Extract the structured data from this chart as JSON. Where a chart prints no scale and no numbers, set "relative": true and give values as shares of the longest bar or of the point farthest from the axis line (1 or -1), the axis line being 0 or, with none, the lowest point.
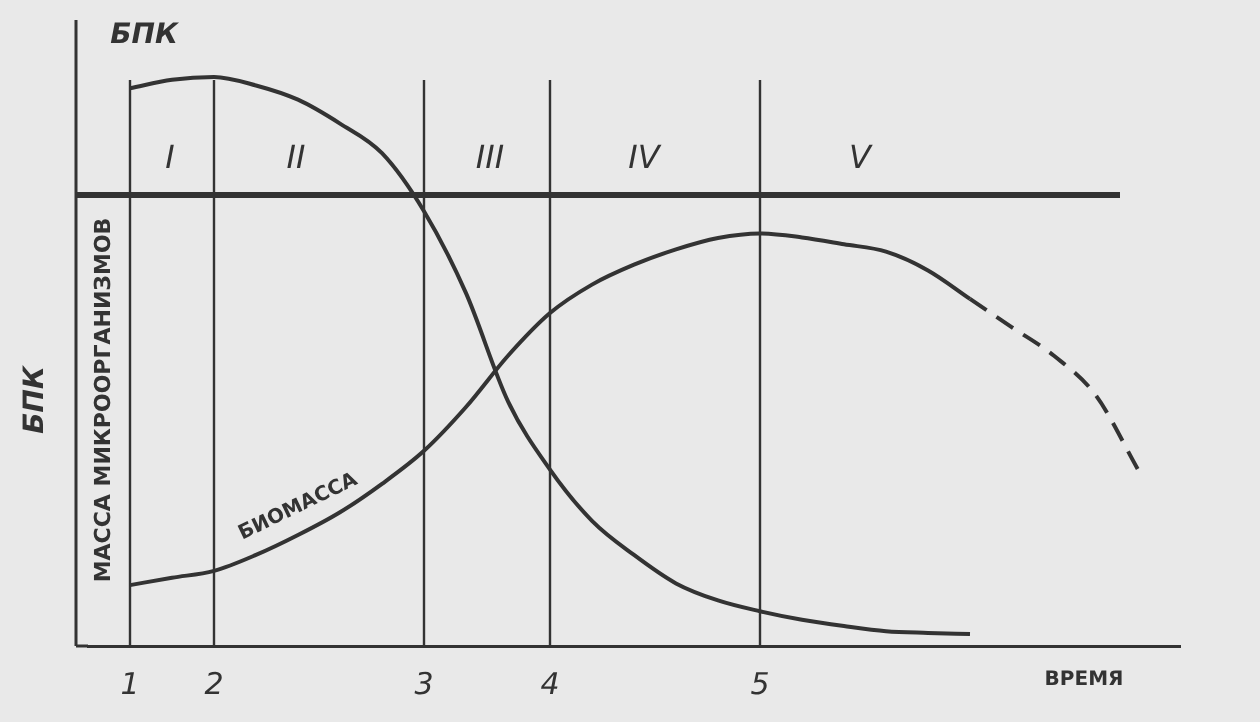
{
  "chart_data": {
    "type": "line",
    "relative": true,
    "ylabel": "БПК",
    "xlabel": "ВРЕМЯ",
    "annotations": [
      "БПК",
      "МАССА МИКРООРГАНИЗМОВ",
      "I",
      "II",
      "III",
      "IV",
      "V"
    ],
    "categories": [
      null,
      "1",
      null,
      "2",
      null,
      null,
      null,
      null,
      "3",
      null,
      null,
      "4",
      null,
      null,
      null,
      null,
      "5",
      null,
      null,
      null,
      null,
      null,
      null,
      null,
      null,
      null,
      null
    ],
    "ref_lines": [
      {
        "axis": "x",
        "value": "1",
        "color": "#333333"
      },
      {
        "axis": "x",
        "value": "2",
        "color": "#333333"
      },
      {
        "axis": "x",
        "value": "3",
        "color": "#333333"
      },
      {
        "axis": "x",
        "value": "4",
        "color": "#333333"
      },
      {
        "axis": "x",
        "value": "5",
        "color": "#333333"
      }
    ],
    "grid": false,
    "legend": false,
    "marker": "none",
    "series": [
      {
        "color": "#333333",
        "line_style": "solid",
        "values": [
          null,
          0.98,
          0.995,
          1.0,
          0.985,
          0.96,
          0.918,
          0.866,
          0.764,
          0.62,
          0.43,
          0.31,
          0.22,
          0.16,
          0.11,
          0.08,
          0.061,
          0.046,
          0.035,
          0.026,
          0.023,
          0.021,
          null,
          null,
          null,
          null,
          null
        ]
      },
      {
        "name": "БИОМАССА",
        "color": "#333333",
        "line_style": "solid",
        "values": [
          null,
          0.107,
          0.12,
          0.132,
          0.16,
          0.195,
          0.235,
          0.285,
          0.343,
          0.42,
          0.51,
          0.585,
          0.635,
          0.67,
          0.697,
          0.717,
          0.725,
          0.718,
          0.706,
          0.693,
          0.66,
          0.61,
          null,
          null,
          null,
          null,
          null
        ]
      },
      {
        "color": "#333333",
        "line_style": "dashed",
        "values": [
          null,
          null,
          null,
          null,
          null,
          null,
          null,
          null,
          null,
          null,
          null,
          null,
          null,
          null,
          null,
          null,
          null,
          null,
          null,
          null,
          null,
          0.61,
          0.56,
          0.51,
          0.44,
          0.31,
          null
        ]
      }
    ]
  }
}
